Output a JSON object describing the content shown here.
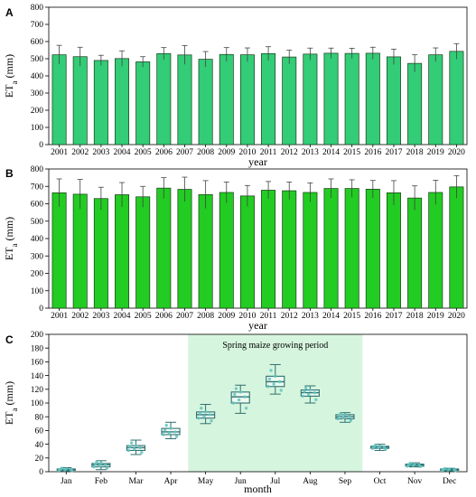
{
  "chart_data": [
    {
      "panel": "A",
      "type": "bar",
      "ylabel": "ET",
      "ylabel_sub": "a",
      "ylabel_unit": "(mm)",
      "xlabel": "year",
      "ylim": [
        0,
        800
      ],
      "yticks": [
        0,
        100,
        200,
        300,
        400,
        500,
        600,
        700,
        800
      ],
      "categories": [
        "2001",
        "2002",
        "2003",
        "2004",
        "2005",
        "2006",
        "2007",
        "2008",
        "2009",
        "2010",
        "2011",
        "2012",
        "2013",
        "2014",
        "2015",
        "2016",
        "2017",
        "2018",
        "2019",
        "2020"
      ],
      "values": [
        523,
        512,
        490,
        501,
        482,
        530,
        522,
        497,
        525,
        523,
        530,
        510,
        527,
        532,
        531,
        532,
        511,
        473,
        523,
        543
      ],
      "errors": [
        55,
        55,
        30,
        45,
        30,
        35,
        55,
        45,
        40,
        40,
        40,
        40,
        35,
        30,
        30,
        35,
        45,
        50,
        40,
        45
      ],
      "bar_color": "#33cc77"
    },
    {
      "panel": "B",
      "type": "bar",
      "ylabel": "ET",
      "ylabel_sub": "a",
      "ylabel_unit": "(mm)",
      "xlabel": "year",
      "ylim": [
        0,
        800
      ],
      "yticks": [
        0,
        100,
        200,
        300,
        400,
        500,
        600,
        700,
        800
      ],
      "categories": [
        "2001",
        "2002",
        "2003",
        "2004",
        "2005",
        "2006",
        "2007",
        "2008",
        "2009",
        "2010",
        "2011",
        "2012",
        "2013",
        "2014",
        "2015",
        "2016",
        "2017",
        "2018",
        "2019",
        "2020"
      ],
      "values": [
        663,
        655,
        630,
        652,
        640,
        690,
        683,
        653,
        665,
        645,
        678,
        675,
        665,
        688,
        688,
        684,
        663,
        633,
        665,
        697
      ],
      "errors": [
        80,
        85,
        65,
        70,
        60,
        60,
        70,
        80,
        60,
        60,
        50,
        50,
        55,
        55,
        50,
        50,
        70,
        70,
        70,
        65
      ],
      "bar_color": "#22cc22"
    },
    {
      "panel": "C",
      "type": "box",
      "ylabel": "ET",
      "ylabel_sub": "a",
      "ylabel_unit": "(mm)",
      "xlabel": "month",
      "ylim": [
        0,
        200
      ],
      "yticks": [
        0,
        20,
        40,
        60,
        80,
        100,
        120,
        140,
        160,
        180,
        200
      ],
      "categories": [
        "Jan",
        "Feb",
        "Mar",
        "Apr",
        "May",
        "Jun",
        "Jul",
        "Aug",
        "Sep",
        "Oct",
        "Nov",
        "Dec"
      ],
      "boxes": [
        {
          "min": 1,
          "q1": 2,
          "median": 3,
          "q3": 4,
          "max": 6
        },
        {
          "min": 3,
          "q1": 7,
          "median": 10,
          "q3": 12,
          "max": 16
        },
        {
          "min": 25,
          "q1": 31,
          "median": 35,
          "q3": 38,
          "max": 46
        },
        {
          "min": 48,
          "q1": 54,
          "median": 58,
          "q3": 63,
          "max": 72
        },
        {
          "min": 70,
          "q1": 78,
          "median": 83,
          "q3": 87,
          "max": 98
        },
        {
          "min": 85,
          "q1": 100,
          "median": 109,
          "q3": 116,
          "max": 126
        },
        {
          "min": 113,
          "q1": 124,
          "median": 131,
          "q3": 139,
          "max": 156
        },
        {
          "min": 100,
          "q1": 110,
          "median": 115,
          "q3": 119,
          "max": 125
        },
        {
          "min": 72,
          "q1": 77,
          "median": 80,
          "q3": 83,
          "max": 86
        },
        {
          "min": 31,
          "q1": 34,
          "median": 36,
          "q3": 37,
          "max": 40
        },
        {
          "min": 7,
          "q1": 8,
          "median": 10,
          "q3": 11,
          "max": 13
        },
        {
          "min": 1,
          "q1": 2,
          "median": 3,
          "q3": 4,
          "max": 5
        }
      ],
      "highlight": {
        "label": "Spring maize growing period",
        "from": "May",
        "to": "Sep",
        "color": "#d6f5de"
      },
      "box_color": "#2e6f6f",
      "point_color": "#5fc6c0"
    }
  ]
}
